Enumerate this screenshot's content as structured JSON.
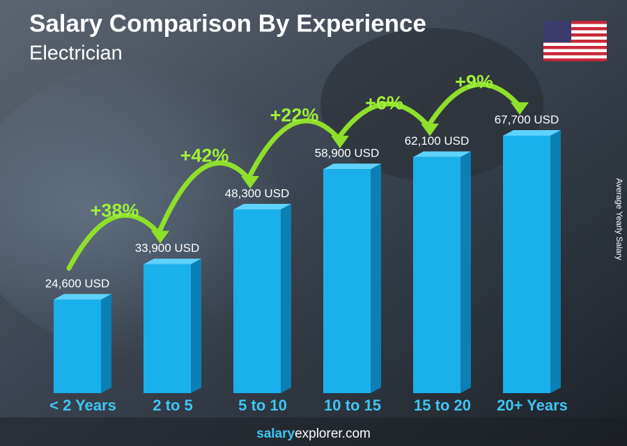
{
  "chart_data": {
    "type": "bar",
    "title": "Salary Comparison By Experience",
    "subtitle": "Electrician",
    "y_axis_label": "Average Yearly Salary",
    "categories": [
      "< 2 Years",
      "2 to 5",
      "5 to 10",
      "10 to 15",
      "15 to 20",
      "20+ Years"
    ],
    "values": [
      24600,
      33900,
      48300,
      58900,
      62100,
      67700
    ],
    "value_labels": [
      "24,600 USD",
      "33,900 USD",
      "48,300 USD",
      "58,900 USD",
      "62,100 USD",
      "67,700 USD"
    ],
    "changes": [
      "+38%",
      "+42%",
      "+22%",
      "+6%",
      "+9%"
    ],
    "color": "#1ab0ec",
    "source": [
      "salary",
      "explorer.com"
    ]
  }
}
